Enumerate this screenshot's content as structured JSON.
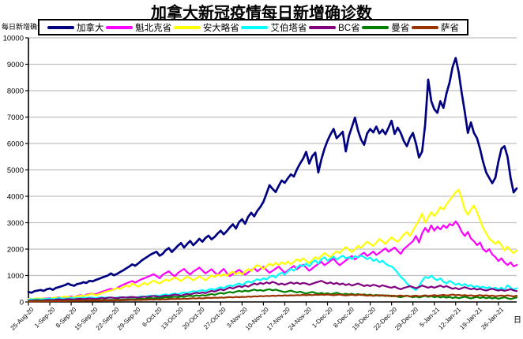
{
  "title": "加拿大新冠疫情每日新增确诊数",
  "y_axis_title": "每日新增确诊",
  "x_axis_title": "日",
  "colors": {
    "background": "#ffffff",
    "axis": "#000000",
    "gridline": "#bfbfbf",
    "tick_label": "#000000",
    "legend_border": "#000000"
  },
  "chart_data": {
    "type": "line",
    "title": "加拿大新冠疫情每日新增确诊数",
    "xlabel": "日",
    "ylabel": "每日新增确诊",
    "ylim": [
      0,
      10000
    ],
    "y_tick_step": 1000,
    "grid": "horizontal",
    "legend_position": "top",
    "x_tick_interval_days": 7,
    "x_tick_labels": [
      "25-Aug-20",
      "1-Sep-20",
      "8-Sep-20",
      "15-Sep-20",
      "22-Sep-20",
      "29-Sep-20",
      "6-Oct-20",
      "13-Oct-20",
      "20-Oct-20",
      "27-Oct-20",
      "3-Nov-20",
      "10-Nov-20",
      "17-Nov-20",
      "24-Nov-20",
      "1-Dec-20",
      "8-Dec-20",
      "15-Dec-20",
      "22-Dec-20",
      "29-Dec-20",
      "5-Jan-21",
      "12-Jan-21",
      "19-Jan-21",
      "26-Jan-21"
    ],
    "series": [
      {
        "id": "canada",
        "name": "加拿大",
        "color": "#000080",
        "stroke_width": 2.7,
        "values": [
          380,
          350,
          410,
          430,
          455,
          420,
          480,
          510,
          460,
          530,
          560,
          600,
          640,
          695,
          640,
          615,
          680,
          700,
          745,
          720,
          800,
          780,
          830,
          870,
          915,
          960,
          1000,
          1080,
          1010,
          1060,
          1130,
          1190,
          1270,
          1340,
          1420,
          1370,
          1460,
          1560,
          1640,
          1710,
          1790,
          1850,
          1900,
          1750,
          1820,
          1960,
          2040,
          1890,
          2010,
          2130,
          2230,
          2060,
          2190,
          2310,
          2150,
          2260,
          2390,
          2280,
          2420,
          2510,
          2370,
          2460,
          2590,
          2700,
          2560,
          2680,
          2820,
          2940,
          2780,
          3020,
          3130,
          2960,
          3220,
          3380,
          3240,
          3450,
          3600,
          3790,
          4100,
          4420,
          4280,
          4160,
          4390,
          4600,
          4510,
          4680,
          4830,
          4750,
          5020,
          5240,
          5420,
          5685,
          5240,
          5520,
          5655,
          4900,
          5400,
          5800,
          6100,
          6350,
          6550,
          6200,
          6320,
          6445,
          5700,
          6280,
          6620,
          6980,
          6500,
          6150,
          5950,
          6380,
          6550,
          6420,
          6640,
          6380,
          6520,
          6350,
          6600,
          6860,
          6360,
          6600,
          6400,
          6100,
          5900,
          6200,
          6400,
          6000,
          5470,
          5700,
          6700,
          8420,
          7600,
          7300,
          7160,
          7600,
          7350,
          7900,
          8300,
          8900,
          9240,
          8700,
          7900,
          7200,
          6400,
          6800,
          6400,
          6200,
          5800,
          5300,
          4900,
          4700,
          4500,
          4700,
          5300,
          5800,
          5900,
          5500,
          4700,
          4150,
          4300
        ]
      },
      {
        "id": "quebec",
        "name": "魁北克省",
        "color": "#FF00FF",
        "stroke_width": 2.2,
        "values": [
          95,
          110,
          88,
          120,
          105,
          140,
          128,
          150,
          132,
          160,
          178,
          145,
          170,
          190,
          205,
          180,
          230,
          260,
          216,
          280,
          300,
          315,
          290,
          340,
          385,
          420,
          460,
          500,
          470,
          530,
          590,
          650,
          700,
          750,
          790,
          730,
          800,
          860,
          900,
          950,
          1000,
          1050,
          980,
          900,
          1030,
          1100,
          1160,
          1050,
          970,
          1100,
          1180,
          1250,
          1130,
          1040,
          1150,
          1220,
          1300,
          1190,
          1080,
          1160,
          1240,
          1120,
          1030,
          1150,
          1250,
          1090,
          980,
          1060,
          1140,
          1220,
          1130,
          1030,
          1120,
          1210,
          1280,
          1160,
          1250,
          1330,
          1210,
          1100,
          1180,
          1260,
          1340,
          1220,
          1100,
          1190,
          1280,
          1360,
          1240,
          1330,
          1410,
          1300,
          1180,
          1270,
          1360,
          1440,
          1520,
          1390,
          1470,
          1560,
          1640,
          1500,
          1390,
          1480,
          1570,
          1660,
          1740,
          1610,
          1700,
          1790,
          1870,
          1740,
          1820,
          1910,
          1780,
          1860,
          1950,
          2030,
          1900,
          1980,
          2060,
          1930,
          1820,
          2000,
          2100,
          2200,
          2300,
          2500,
          2250,
          2600,
          2800,
          2650,
          2900,
          2700,
          2850,
          2750,
          2900,
          2800,
          2950,
          2900,
          3050,
          2900,
          2650,
          2500,
          2650,
          2400,
          2300,
          2150,
          2250,
          2000,
          1900,
          2000,
          1800,
          1700,
          1550,
          1650,
          1500,
          1400,
          1500,
          1350,
          1400
        ]
      },
      {
        "id": "ontario",
        "name": "安大略省",
        "color": "#FFFF00",
        "stroke_width": 2.2,
        "values": [
          115,
          105,
          125,
          140,
          118,
          130,
          112,
          130,
          150,
          170,
          155,
          185,
          200,
          190,
          170,
          185,
          215,
          240,
          220,
          255,
          280,
          315,
          250,
          290,
          335,
          375,
          410,
          435,
          478,
          525,
          490,
          554,
          625,
          580,
          700,
          640,
          580,
          650,
          720,
          655,
          740,
          810,
          750,
          700,
          780,
          850,
          790,
          870,
          930,
          860,
          790,
          880,
          960,
          900,
          820,
          890,
          970,
          900,
          820,
          910,
          1000,
          940,
          1040,
          980,
          1050,
          990,
          1090,
          1150,
          1050,
          1120,
          1050,
          1150,
          1250,
          1170,
          1300,
          1400,
          1330,
          1250,
          1350,
          1450,
          1380,
          1480,
          1400,
          1500,
          1430,
          1530,
          1420,
          1520,
          1620,
          1540,
          1650,
          1560,
          1470,
          1590,
          1700,
          1620,
          1750,
          1850,
          1770,
          1700,
          1820,
          1920,
          1850,
          1970,
          2080,
          1980,
          1890,
          2000,
          2120,
          2050,
          2170,
          2280,
          2200,
          2120,
          2250,
          2380,
          2300,
          2200,
          2330,
          2450,
          2350,
          2280,
          2400,
          2550,
          2650,
          2500,
          2700,
          2900,
          3100,
          3350,
          3000,
          3200,
          3400,
          3250,
          3400,
          3600,
          3500,
          3700,
          3850,
          4000,
          4150,
          4250,
          3900,
          3500,
          3300,
          3500,
          3650,
          3400,
          3100,
          2800,
          2600,
          2400,
          2300,
          2200,
          2300,
          2150,
          1950,
          2100,
          1950,
          1850,
          1950
        ]
      },
      {
        "id": "alberta",
        "name": "艾伯塔省",
        "color": "#00FFFF",
        "stroke_width": 2.2,
        "values": [
          85,
          100,
          92,
          110,
          95,
          105,
          115,
          130,
          110,
          125,
          145,
          135,
          120,
          140,
          150,
          135,
          155,
          145,
          165,
          150,
          170,
          160,
          145,
          165,
          180,
          155,
          175,
          165,
          150,
          170,
          185,
          160,
          175,
          190,
          180,
          170,
          190,
          210,
          195,
          220,
          240,
          225,
          250,
          230,
          270,
          290,
          260,
          300,
          320,
          290,
          330,
          360,
          330,
          380,
          410,
          390,
          420,
          450,
          410,
          470,
          500,
          460,
          520,
          560,
          520,
          590,
          630,
          600,
          660,
          700,
          640,
          720,
          780,
          730,
          800,
          860,
          820,
          900,
          850,
          950,
          1000,
          920,
          1050,
          1100,
          1040,
          1150,
          1250,
          1180,
          1300,
          1400,
          1350,
          1455,
          1350,
          1500,
          1580,
          1450,
          1620,
          1690,
          1560,
          1640,
          1720,
          1600,
          1680,
          1755,
          1650,
          1700,
          1620,
          1740,
          1680,
          1760,
          1700,
          1620,
          1680,
          1550,
          1620,
          1500,
          1560,
          1450,
          1380,
          1350,
          1240,
          1100,
          950,
          850,
          700,
          600,
          520,
          450,
          600,
          800,
          950,
          900,
          1000,
          880,
          820,
          900,
          760,
          700,
          800,
          730,
          650,
          700,
          620,
          680,
          600,
          640,
          560,
          600,
          540,
          580,
          520,
          560,
          500,
          540,
          480,
          540,
          460,
          630,
          540,
          470,
          520
        ]
      },
      {
        "id": "bc",
        "name": "BC省",
        "color": "#800080",
        "stroke_width": 2.2,
        "values": [
          55,
          48,
          62,
          70,
          58,
          66,
          75,
          82,
          70,
          90,
          100,
          85,
          95,
          110,
          100,
          90,
          115,
          125,
          105,
          120,
          135,
          125,
          110,
          130,
          148,
          135,
          155,
          170,
          155,
          140,
          165,
          180,
          160,
          175,
          190,
          175,
          160,
          185,
          200,
          180,
          210,
          230,
          210,
          190,
          220,
          245,
          225,
          255,
          280,
          260,
          240,
          274,
          300,
          280,
          320,
          350,
          325,
          360,
          330,
          380,
          420,
          390,
          440,
          480,
          440,
          500,
          550,
          510,
          560,
          600,
          560,
          620,
          580,
          640,
          700,
          660,
          720,
          680,
          740,
          700,
          760,
          720,
          660,
          700,
          650,
          700,
          740,
          690,
          730,
          680,
          720,
          700,
          650,
          690,
          730,
          760,
          800,
          740,
          700,
          740,
          680,
          720,
          660,
          700,
          640,
          680,
          620,
          660,
          700,
          650,
          600,
          640,
          600,
          650,
          620,
          580,
          630,
          600,
          560,
          540,
          580,
          520,
          480,
          530,
          560,
          600,
          560,
          520,
          560,
          620,
          580,
          540,
          580,
          540,
          580,
          620,
          560,
          600,
          550,
          500,
          530,
          480,
          520,
          560,
          520,
          480,
          510,
          470,
          500,
          460,
          430,
          470,
          500,
          460,
          430,
          460,
          420,
          450,
          480,
          440,
          410
        ]
      },
      {
        "id": "manitoba",
        "name": "曼省",
        "color": "#008000",
        "stroke_width": 2.2,
        "values": [
          35,
          28,
          40,
          33,
          45,
          38,
          30,
          42,
          35,
          48,
          40,
          52,
          45,
          55,
          48,
          58,
          50,
          62,
          54,
          66,
          58,
          70,
          60,
          75,
          65,
          80,
          72,
          85,
          75,
          90,
          80,
          95,
          85,
          100,
          110,
          95,
          110,
          125,
          110,
          130,
          145,
          130,
          150,
          135,
          160,
          180,
          160,
          185,
          200,
          180,
          210,
          190,
          220,
          240,
          215,
          250,
          230,
          260,
          240,
          275,
          300,
          270,
          310,
          340,
          310,
          350,
          380,
          350,
          390,
          420,
          390,
          430,
          400,
          440,
          470,
          430,
          450,
          420,
          460,
          480,
          440,
          470,
          430,
          400,
          370,
          400,
          430,
          390,
          360,
          390,
          350,
          320,
          350,
          380,
          340,
          310,
          340,
          300,
          330,
          290,
          320,
          350,
          310,
          280,
          310,
          280,
          310,
          270,
          300,
          260,
          290,
          250,
          280,
          240,
          270,
          230,
          260,
          220,
          250,
          210,
          240,
          200,
          180,
          210,
          240,
          210,
          180,
          210,
          170,
          200,
          230,
          190,
          220,
          180,
          210,
          170,
          200,
          160,
          190,
          150,
          180,
          140,
          170,
          200,
          160,
          130,
          160,
          190,
          150,
          180,
          140,
          170,
          130,
          160,
          120,
          150,
          180,
          140,
          110,
          140,
          170
        ]
      },
      {
        "id": "saskatchewan",
        "name": "萨省",
        "color": "#993300",
        "stroke_width": 2.2,
        "values": [
          15,
          22,
          18,
          25,
          20,
          28,
          24,
          30,
          25,
          35,
          28,
          38,
          32,
          40,
          35,
          45,
          38,
          48,
          42,
          52,
          45,
          55,
          48,
          58,
          50,
          62,
          55,
          65,
          58,
          68,
          60,
          72,
          65,
          75,
          80,
          70,
          82,
          75,
          88,
          80,
          92,
          85,
          95,
          88,
          100,
          92,
          105,
          115,
          108,
          120,
          110,
          125,
          115,
          130,
          140,
          128,
          145,
          132,
          150,
          160,
          148,
          165,
          155,
          170,
          158,
          175,
          185,
          170,
          190,
          180,
          195,
          185,
          205,
          195,
          215,
          205,
          225,
          215,
          230,
          220,
          240,
          228,
          245,
          235,
          250,
          238,
          255,
          245,
          260,
          250,
          270,
          255,
          270,
          258,
          275,
          262,
          280,
          268,
          285,
          270,
          255,
          270,
          285,
          260,
          245,
          260,
          275,
          250,
          265,
          280,
          255,
          240,
          255,
          230,
          245,
          260,
          235,
          250,
          225,
          240,
          215,
          230,
          245,
          220,
          235,
          210,
          225,
          240,
          215,
          230,
          250,
          225,
          240,
          260,
          235,
          250,
          270,
          245,
          260,
          280,
          255,
          270,
          245,
          260,
          235,
          250,
          225,
          240,
          260,
          235,
          250,
          225,
          240,
          215,
          230,
          245,
          220,
          250,
          230,
          210,
          235
        ]
      }
    ]
  }
}
